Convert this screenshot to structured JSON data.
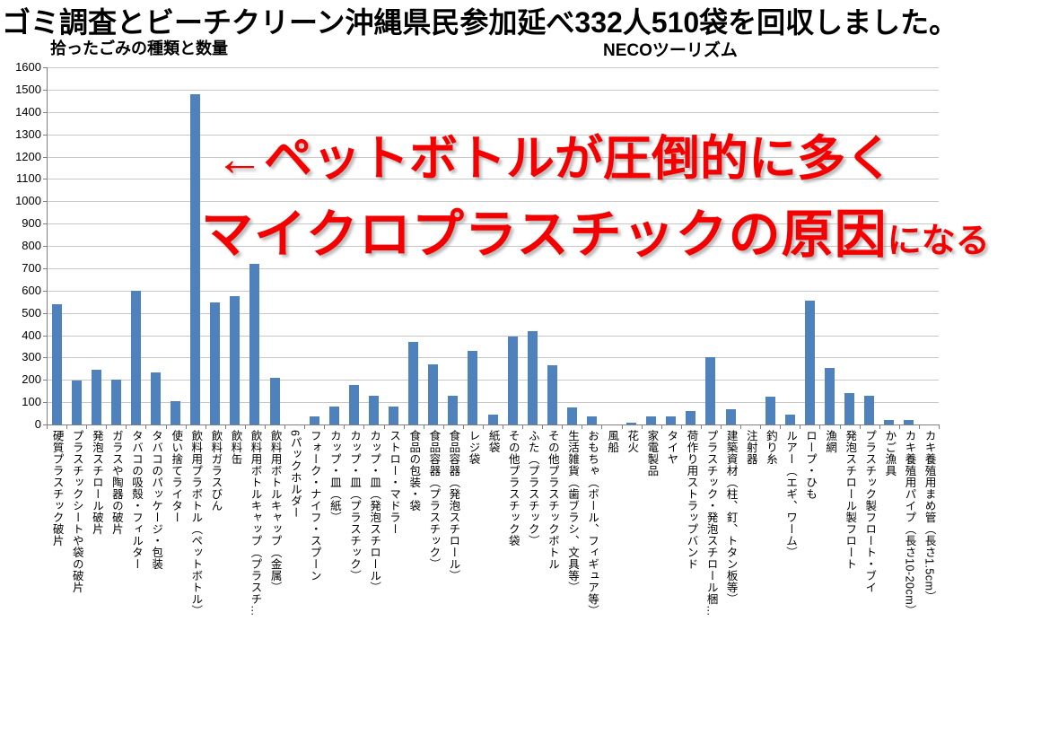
{
  "header": {
    "title": "ゴミ調査とビーチクリーン沖縄県民参加延べ332人510袋を回収しました。",
    "chart_subtitle": "拾ったごみの種類と数量",
    "brand": "NECOツーリズム"
  },
  "annotation": {
    "line1": "←ペットボトルが圧倒的に多く",
    "line2_main": "マイクロプラスチックの原因",
    "line2_suffix": "になる",
    "color": "#F40000"
  },
  "chart_data": {
    "type": "bar",
    "title": "拾ったごみの種類と数量",
    "xlabel": "",
    "ylabel": "",
    "ylim": [
      0,
      1600
    ],
    "y_ticks": [
      0,
      100,
      200,
      300,
      400,
      500,
      600,
      700,
      800,
      900,
      1000,
      1100,
      1200,
      1300,
      1400,
      1500,
      1600
    ],
    "grid": true,
    "legend": false,
    "bar_color": "#4F81BD",
    "grid_color": "#C8C8C8",
    "axis_color": "#808080",
    "categories": [
      "硬質プラスチック破片",
      "プラスチックシートや袋の破片",
      "発泡スチロール破片",
      "ガラスや陶器の破片",
      "タバコの吸殻・フィルター",
      "タバコのパッケージ・包装",
      "使い捨てライター",
      "飲料用プラボトル（ペットボトル）",
      "飲料ガラスびん",
      "飲料缶",
      "飲料用ボトルキャップ（プラスチ…",
      "飲料用ボトルキャップ（金属）",
      "6パックホルダー",
      "フォーク・ナイフ・スプーン",
      "カップ・皿（紙）",
      "カップ・皿（プラスチック）",
      "カップ・皿（発泡スチロール）",
      "ストロー・マドラー",
      "食品の包装・袋",
      "食品容器（プラスチック）",
      "食品容器（発泡スチロール）",
      "レジ袋",
      "紙袋",
      "その他プラスチック袋",
      "ふた（プラスチック）",
      "その他プラスチックボトル",
      "生活雑貨（歯ブラシ、文具等）",
      "おもちゃ（ボール、フィギュア等）",
      "風船",
      "花火",
      "家電製品",
      "タイヤ",
      "荷作り用ストラップバンド",
      "プラスチック・発泡スチロール梱…",
      "建築資材（柱、釘、トタン板等）",
      "注射器",
      "釣り糸",
      "ルアー（エギ、ワーム）",
      "ロープ・ひも",
      "漁網",
      "発泡スチロール製フロート",
      "プラスチック製フロート・ブイ",
      "かご漁具",
      "カキ養殖用パイプ（長さ10-20cm）",
      "カキ養殖用まめ管（長さ1.5cm）"
    ],
    "values": [
      540,
      195,
      245,
      200,
      600,
      235,
      105,
      1480,
      545,
      575,
      720,
      210,
      0,
      35,
      80,
      175,
      130,
      80,
      370,
      270,
      130,
      330,
      45,
      395,
      420,
      265,
      75,
      35,
      0,
      10,
      35,
      35,
      60,
      300,
      70,
      0,
      125,
      45,
      555,
      255,
      140,
      130,
      20,
      20,
      0
    ]
  }
}
